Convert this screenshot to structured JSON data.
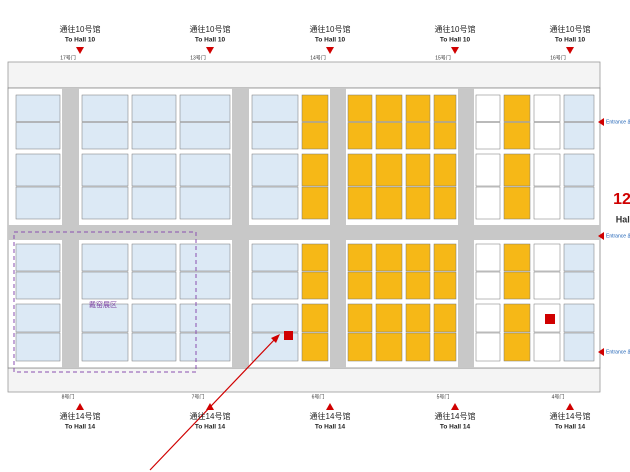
{
  "top_signs": [
    {
      "cn": "通往10号馆",
      "en": "To Hall 10"
    },
    {
      "cn": "通往10号馆",
      "en": "To Hall 10"
    },
    {
      "cn": "通往10号馆",
      "en": "To Hall 10"
    },
    {
      "cn": "通往10号馆",
      "en": "To Hall 10"
    },
    {
      "cn": "通往10号馆",
      "en": "To Hall 10"
    }
  ],
  "bottom_signs": [
    {
      "cn": "通往14号馆",
      "en": "To Hall 14"
    },
    {
      "cn": "通往14号馆",
      "en": "To Hall 14"
    },
    {
      "cn": "通往14号馆",
      "en": "To Hall 14"
    },
    {
      "cn": "通往14号馆",
      "en": "To Hall 14"
    },
    {
      "cn": "通往14号馆",
      "en": "To Hall 14"
    }
  ],
  "top_gates": [
    "17号门",
    "13号门",
    "14号门",
    "15号门",
    "16号门"
  ],
  "bottom_gates": [
    "8号门",
    "7号门",
    "6号门",
    "5号门",
    "4号门"
  ],
  "hall": {
    "number": "12",
    "label": "Hall"
  },
  "entrances": [
    "Entrance 出入口",
    "Entrance 出",
    "Entrance 出入口"
  ],
  "zone": "戴窑展区"
}
